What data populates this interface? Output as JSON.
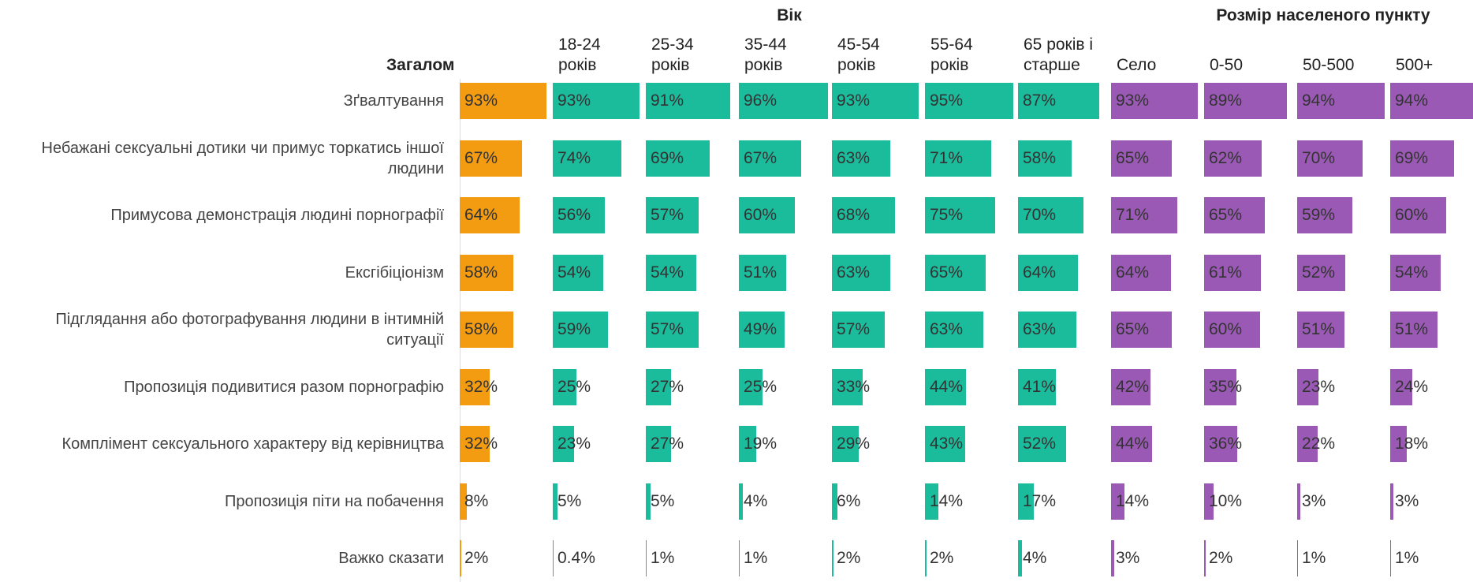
{
  "chart_data": {
    "type": "bar",
    "group_titles": [
      "Вік",
      "Розмір населеного пункту"
    ],
    "xlim": [
      0,
      100
    ],
    "categories": [
      "Зґвалтування",
      "Небажані сексуальні дотики чи примус торкатись іншої людини",
      "Примусова демонстрація людині порнографії",
      "Ексгібіціонізм",
      "Підглядання або фотографування людини в інтимній ситуації",
      "Пропозиція подивитися разом порнографію",
      "Комплімент сексуального характеру від керівництва",
      "Пропозиція піти на побачення",
      "Важко сказати"
    ],
    "series": [
      {
        "name": "Загалом",
        "color": "#f39c12",
        "values": [
          93,
          67,
          64,
          58,
          58,
          32,
          32,
          8,
          2
        ],
        "value_labels": [
          "93%",
          "67%",
          "64%",
          "58%",
          "58%",
          "32%",
          "32%",
          "8%",
          "2%"
        ]
      },
      {
        "name": "18-24\nроків",
        "color": "#1abc9c",
        "values": [
          93,
          74,
          56,
          54,
          59,
          25,
          23,
          5,
          0.4
        ],
        "value_labels": [
          "93%",
          "74%",
          "56%",
          "54%",
          "59%",
          "25%",
          "23%",
          "5%",
          "0.4%"
        ]
      },
      {
        "name": "25-34\nроків",
        "color": "#1abc9c",
        "values": [
          91,
          69,
          57,
          54,
          57,
          27,
          27,
          5,
          1
        ],
        "value_labels": [
          "91%",
          "69%",
          "57%",
          "54%",
          "57%",
          "27%",
          "27%",
          "5%",
          "1%"
        ]
      },
      {
        "name": "35-44\nроків",
        "color": "#1abc9c",
        "values": [
          96,
          67,
          60,
          51,
          49,
          25,
          19,
          4,
          1
        ],
        "value_labels": [
          "96%",
          "67%",
          "60%",
          "51%",
          "49%",
          "25%",
          "19%",
          "4%",
          "1%"
        ]
      },
      {
        "name": "45-54\nроків",
        "color": "#1abc9c",
        "values": [
          93,
          63,
          68,
          63,
          57,
          33,
          29,
          6,
          2
        ],
        "value_labels": [
          "93%",
          "63%",
          "68%",
          "63%",
          "57%",
          "33%",
          "29%",
          "6%",
          "2%"
        ]
      },
      {
        "name": "55-64\nроків",
        "color": "#1abc9c",
        "values": [
          95,
          71,
          75,
          65,
          63,
          44,
          43,
          14,
          2
        ],
        "value_labels": [
          "95%",
          "71%",
          "75%",
          "65%",
          "63%",
          "44%",
          "43%",
          "14%",
          "2%"
        ]
      },
      {
        "name": "65 років і\nстарше",
        "color": "#1abc9c",
        "values": [
          87,
          58,
          70,
          64,
          63,
          41,
          52,
          17,
          4
        ],
        "value_labels": [
          "87%",
          "58%",
          "70%",
          "64%",
          "63%",
          "41%",
          "52%",
          "17%",
          "4%"
        ]
      },
      {
        "name": "Село",
        "color": "#9b59b6",
        "values": [
          93,
          65,
          71,
          64,
          65,
          42,
          44,
          14,
          3
        ],
        "value_labels": [
          "93%",
          "65%",
          "71%",
          "64%",
          "65%",
          "42%",
          "44%",
          "14%",
          "3%"
        ]
      },
      {
        "name": "0-50",
        "color": "#9b59b6",
        "values": [
          89,
          62,
          65,
          61,
          60,
          35,
          36,
          10,
          2
        ],
        "value_labels": [
          "89%",
          "62%",
          "65%",
          "61%",
          "60%",
          "35%",
          "36%",
          "10%",
          "2%"
        ]
      },
      {
        "name": "50-500",
        "color": "#9b59b6",
        "values": [
          94,
          70,
          59,
          52,
          51,
          23,
          22,
          3,
          1
        ],
        "value_labels": [
          "94%",
          "70%",
          "59%",
          "52%",
          "51%",
          "23%",
          "22%",
          "3%",
          "1%"
        ]
      },
      {
        "name": "500+",
        "color": "#9b59b6",
        "values": [
          94,
          69,
          60,
          54,
          51,
          24,
          18,
          3,
          1
        ],
        "value_labels": [
          "94%",
          "69%",
          "60%",
          "54%",
          "51%",
          "24%",
          "18%",
          "3%",
          "1%"
        ]
      }
    ]
  }
}
